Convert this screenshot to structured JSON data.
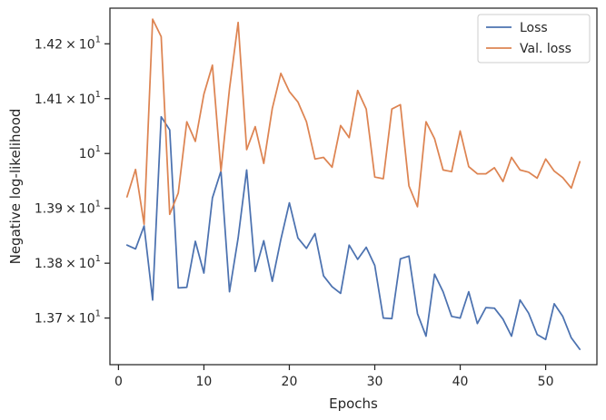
{
  "chart_data": {
    "type": "line",
    "xlabel": "Epochs",
    "ylabel": "Negative log-likelihood",
    "xlim": [
      -1,
      56
    ],
    "ylim": [
      13.615,
      14.265
    ],
    "x_ticks": [
      0,
      10,
      20,
      30,
      40,
      50
    ],
    "x_tick_labels": [
      "0",
      "10",
      "20",
      "30",
      "40",
      "50"
    ],
    "y_ticks": [
      13.7,
      13.8,
      13.9,
      14.0,
      14.1,
      14.2
    ],
    "y_tick_labels": [
      {
        "mantissa": "1.37",
        "times": "×",
        "base": "10",
        "exp": "1"
      },
      {
        "mantissa": "1.38",
        "times": "×",
        "base": "10",
        "exp": "1"
      },
      {
        "mantissa": "1.39",
        "times": "×",
        "base": "10",
        "exp": "1"
      },
      {
        "mantissa": "",
        "times": "",
        "base": "10",
        "exp": "1"
      },
      {
        "mantissa": "1.41",
        "times": "×",
        "base": "10",
        "exp": "1"
      },
      {
        "mantissa": "1.42",
        "times": "×",
        "base": "10",
        "exp": "1"
      }
    ],
    "legend_position": "top-right",
    "grid": false,
    "series": [
      {
        "name": "Loss",
        "color": "#4c72b0",
        "x": [
          1,
          2,
          3,
          4,
          5,
          6,
          7,
          8,
          9,
          10,
          11,
          12,
          13,
          14,
          15,
          16,
          17,
          18,
          19,
          20,
          21,
          22,
          23,
          24,
          25,
          26,
          27,
          28,
          29,
          30,
          31,
          32,
          33,
          34,
          35,
          36,
          37,
          38,
          39,
          40,
          41,
          42,
          43,
          44,
          45,
          46,
          47,
          48,
          49,
          50,
          51,
          52,
          53,
          54
        ],
        "values": [
          13.833,
          13.826,
          13.868,
          13.733,
          14.067,
          14.043,
          13.755,
          13.756,
          13.84,
          13.782,
          13.919,
          13.968,
          13.748,
          13.846,
          13.97,
          13.785,
          13.841,
          13.767,
          13.843,
          13.91,
          13.846,
          13.827,
          13.854,
          13.777,
          13.757,
          13.745,
          13.833,
          13.807,
          13.829,
          13.796,
          13.7,
          13.699,
          13.808,
          13.813,
          13.708,
          13.667,
          13.78,
          13.748,
          13.703,
          13.7,
          13.748,
          13.69,
          13.719,
          13.718,
          13.698,
          13.667,
          13.733,
          13.709,
          13.67,
          13.661,
          13.726,
          13.703,
          13.664,
          13.643
        ]
      },
      {
        "name": "Val. loss",
        "color": "#dd8452",
        "x": [
          1,
          2,
          3,
          4,
          5,
          6,
          7,
          8,
          9,
          10,
          11,
          12,
          13,
          14,
          15,
          16,
          17,
          18,
          19,
          20,
          21,
          22,
          23,
          24,
          25,
          26,
          27,
          28,
          29,
          30,
          31,
          32,
          33,
          34,
          35,
          36,
          37,
          38,
          39,
          40,
          41,
          42,
          43,
          44,
          45,
          46,
          47,
          48,
          49,
          50,
          51,
          52,
          53,
          54
        ],
        "values": [
          13.921,
          13.971,
          13.871,
          14.245,
          14.213,
          13.889,
          13.928,
          14.058,
          14.022,
          14.108,
          14.161,
          13.968,
          14.118,
          14.239,
          14.007,
          14.049,
          13.982,
          14.082,
          14.146,
          14.113,
          14.094,
          14.058,
          13.99,
          13.993,
          13.975,
          14.051,
          14.029,
          14.115,
          14.081,
          13.957,
          13.954,
          14.081,
          14.089,
          13.941,
          13.903,
          14.058,
          14.027,
          13.97,
          13.967,
          14.041,
          13.976,
          13.963,
          13.963,
          13.974,
          13.949,
          13.993,
          13.97,
          13.966,
          13.955,
          13.99,
          13.968,
          13.956,
          13.937,
          13.985
        ]
      }
    ]
  }
}
